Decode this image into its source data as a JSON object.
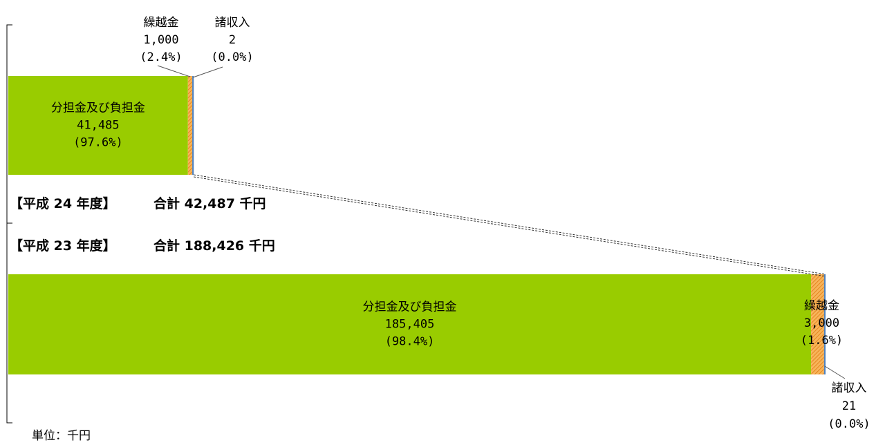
{
  "chart_data": {
    "type": "bar",
    "stacked": true,
    "orientation": "horizontal",
    "unit_label": "単位：千円",
    "bars": [
      {
        "year_label": "【平成 24 年度】",
        "total_label": "合計 42,487 千円",
        "total": 42487,
        "segments": [
          {
            "name": "分担金及び負担金",
            "value_text": "41,485",
            "pct_text": "(97.6%)",
            "value": 41485,
            "color": "#99cc00",
            "pattern": "solid"
          },
          {
            "name": "繰越金",
            "value_text": "1,000",
            "pct_text": "(2.4%)",
            "value": 1000,
            "color": "#f5a040",
            "pattern": "hatch"
          },
          {
            "name": "諸収入",
            "value_text": "2",
            "pct_text": "(0.0%)",
            "value": 2,
            "color": "#4f81bd",
            "pattern": "solid"
          }
        ]
      },
      {
        "year_label": "【平成 23 年度】",
        "total_label": "合計 188,426 千円",
        "total": 188426,
        "segments": [
          {
            "name": "分担金及び負担金",
            "value_text": "185,405",
            "pct_text": "(98.4%)",
            "value": 185405,
            "color": "#99cc00",
            "pattern": "solid"
          },
          {
            "name": "繰越金",
            "value_text": "3,000",
            "pct_text": "(1.6%)",
            "value": 3000,
            "color": "#f5a040",
            "pattern": "hatch"
          },
          {
            "name": "諸収入",
            "value_text": "21",
            "pct_text": "(0.0%)",
            "value": 21,
            "color": "#4f81bd",
            "pattern": "solid"
          }
        ]
      }
    ]
  }
}
